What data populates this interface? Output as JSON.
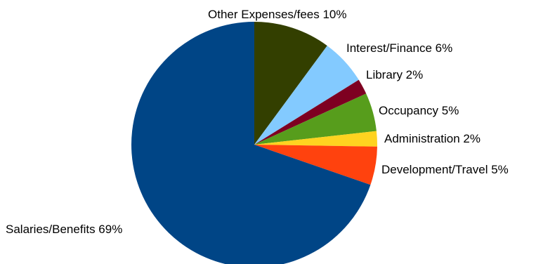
{
  "chart_data": {
    "type": "pie",
    "title": "",
    "start_angle_deg": 0,
    "direction": "clockwise",
    "slices": [
      {
        "label": "Other Expenses/fees 10%",
        "category": "Other Expenses/fees",
        "value": 10,
        "color": "#333f00"
      },
      {
        "label": "Interest/Finance 6%",
        "category": "Interest/Finance",
        "value": 6,
        "color": "#83caff"
      },
      {
        "label": "Library 2%",
        "category": "Library",
        "value": 2,
        "color": "#7e0021"
      },
      {
        "label": "Occupancy 5%",
        "category": "Occupancy",
        "value": 5,
        "color": "#579d1c"
      },
      {
        "label": "Administration 2%",
        "category": "Administration",
        "value": 2,
        "color": "#ffd320"
      },
      {
        "label": "Development/Travel 5%",
        "category": "Development/Travel",
        "value": 5,
        "color": "#ff420e"
      },
      {
        "label": "Salaries/Benefits 69%",
        "category": "Salaries/Benefits",
        "value": 69,
        "color": "#004586"
      }
    ]
  }
}
